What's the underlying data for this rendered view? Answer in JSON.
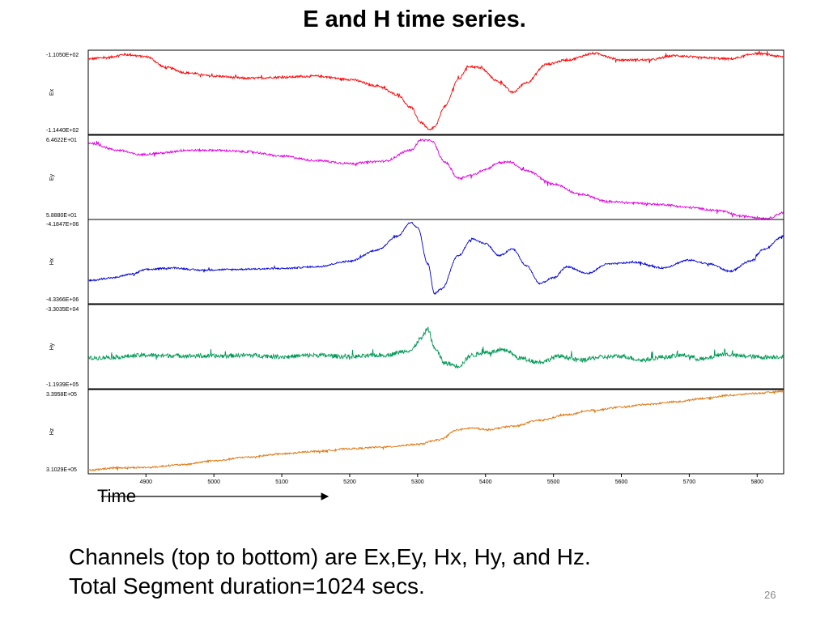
{
  "title": "E and H time series.",
  "time_label": "Time",
  "caption": {
    "line1": "Channels (top to bottom) are Ex,Ey, Hx, Hy, and Hz.",
    "line2": "Total Segment duration=1024 secs."
  },
  "page_number": "26",
  "chart_data": {
    "type": "line",
    "xlim": [
      4815,
      5839
    ],
    "x_ticks": [
      4900,
      5000,
      5100,
      5200,
      5300,
      5400,
      5500,
      5600,
      5700,
      5800
    ],
    "channels": [
      {
        "name": "Ex",
        "color": "#ff0000",
        "ymax_label": "-1.1050E+02",
        "ymin_label": "-1.1440E+02",
        "ylim": [
          -114.4,
          -110.5
        ],
        "noise": 0.05,
        "x": [
          4815,
          4840,
          4870,
          4900,
          4930,
          4960,
          5000,
          5050,
          5100,
          5150,
          5200,
          5240,
          5270,
          5290,
          5305,
          5318,
          5325,
          5340,
          5360,
          5375,
          5390,
          5420,
          5440,
          5460,
          5490,
          5520,
          5560,
          5600,
          5640,
          5680,
          5720,
          5760,
          5800,
          5839
        ],
        "values": [
          -110.9,
          -110.85,
          -110.7,
          -110.8,
          -111.3,
          -111.55,
          -111.7,
          -111.8,
          -111.75,
          -111.7,
          -111.85,
          -112.15,
          -112.55,
          -113.15,
          -113.85,
          -114.2,
          -114.05,
          -113.1,
          -111.85,
          -111.25,
          -111.3,
          -111.95,
          -112.45,
          -112.0,
          -111.15,
          -110.95,
          -110.65,
          -110.95,
          -110.95,
          -110.75,
          -110.85,
          -110.9,
          -110.65,
          -110.8
        ]
      },
      {
        "name": "Ey",
        "color": "#dd00dd",
        "ymax_label": "6.4622E+01",
        "ymin_label": "5.8880E+01",
        "ylim": [
          58.88,
          64.622
        ],
        "noise": 0.07,
        "x": [
          4815,
          4860,
          4890,
          4920,
          4960,
          5000,
          5050,
          5100,
          5150,
          5200,
          5250,
          5290,
          5305,
          5320,
          5340,
          5360,
          5380,
          5400,
          5420,
          5435,
          5460,
          5500,
          5540,
          5580,
          5620,
          5660,
          5700,
          5740,
          5780,
          5815,
          5839
        ],
        "values": [
          64.1,
          63.6,
          63.3,
          63.4,
          63.6,
          63.6,
          63.5,
          63.2,
          62.9,
          62.7,
          62.85,
          63.6,
          64.3,
          64.25,
          62.8,
          61.7,
          61.9,
          62.3,
          62.75,
          62.8,
          62.2,
          61.3,
          60.6,
          60.1,
          60.0,
          59.9,
          59.7,
          59.5,
          59.1,
          58.95,
          59.35
        ]
      },
      {
        "name": "Hx",
        "color": "#0000dd",
        "ymax_label": "-4.1847E+06",
        "ymin_label": "-4.3366E+06",
        "ylim": [
          -4336600,
          -4184700
        ],
        "noise": 1500,
        "x": [
          4815,
          4850,
          4880,
          4900,
          4940,
          4980,
          5020,
          5060,
          5100,
          5150,
          5200,
          5240,
          5270,
          5290,
          5300,
          5315,
          5325,
          5335,
          5360,
          5380,
          5400,
          5420,
          5440,
          5460,
          5480,
          5500,
          5520,
          5550,
          5580,
          5620,
          5660,
          5700,
          5730,
          5760,
          5790,
          5810,
          5839
        ],
        "values": [
          -4295000,
          -4290000,
          -4283000,
          -4275000,
          -4272000,
          -4276000,
          -4275000,
          -4274000,
          -4273000,
          -4270000,
          -4260000,
          -4240000,
          -4215000,
          -4190000,
          -4200000,
          -4265000,
          -4318000,
          -4310000,
          -4250000,
          -4220000,
          -4228000,
          -4250000,
          -4238000,
          -4268000,
          -4300000,
          -4290000,
          -4270000,
          -4282000,
          -4265000,
          -4262000,
          -4272000,
          -4258000,
          -4265000,
          -4278000,
          -4260000,
          -4238000,
          -4215000
        ]
      },
      {
        "name": "Hy",
        "color": "#009955",
        "ymax_label": "-3.3035E+04",
        "ymin_label": "-1.1939E+05",
        "ylim": [
          -119390,
          -33035
        ],
        "noise": 2200,
        "x": [
          4815,
          4850,
          4900,
          4950,
          5000,
          5050,
          5100,
          5150,
          5200,
          5250,
          5290,
          5305,
          5315,
          5325,
          5340,
          5360,
          5380,
          5400,
          5430,
          5450,
          5480,
          5510,
          5540,
          5570,
          5600,
          5630,
          5660,
          5690,
          5720,
          5750,
          5780,
          5810,
          5839
        ],
        "values": [
          -88000,
          -87000,
          -85000,
          -85500,
          -86000,
          -85000,
          -86500,
          -85000,
          -86500,
          -85000,
          -80000,
          -68000,
          -58000,
          -78000,
          -93000,
          -96000,
          -85000,
          -82000,
          -80000,
          -88000,
          -92000,
          -86000,
          -90000,
          -87000,
          -86000,
          -90000,
          -87000,
          -85000,
          -89000,
          -84000,
          -86000,
          -87000,
          -86500
        ]
      },
      {
        "name": "Hz",
        "color": "#dd7711",
        "ymax_label": "3.3958E+05",
        "ymin_label": "3.1029E+05",
        "ylim": [
          310290,
          339580
        ],
        "noise": 300,
        "x": [
          4815,
          4860,
          4900,
          4950,
          5000,
          5050,
          5100,
          5150,
          5200,
          5250,
          5300,
          5330,
          5360,
          5380,
          5400,
          5440,
          5480,
          5520,
          5560,
          5600,
          5640,
          5680,
          5720,
          5760,
          5800,
          5839
        ],
        "values": [
          311600,
          312400,
          312500,
          313400,
          314800,
          316100,
          317200,
          318100,
          319000,
          319600,
          320500,
          322000,
          325600,
          326200,
          325600,
          326800,
          328900,
          330800,
          332400,
          333500,
          334500,
          335300,
          336500,
          337600,
          338300,
          339000
        ]
      }
    ]
  }
}
